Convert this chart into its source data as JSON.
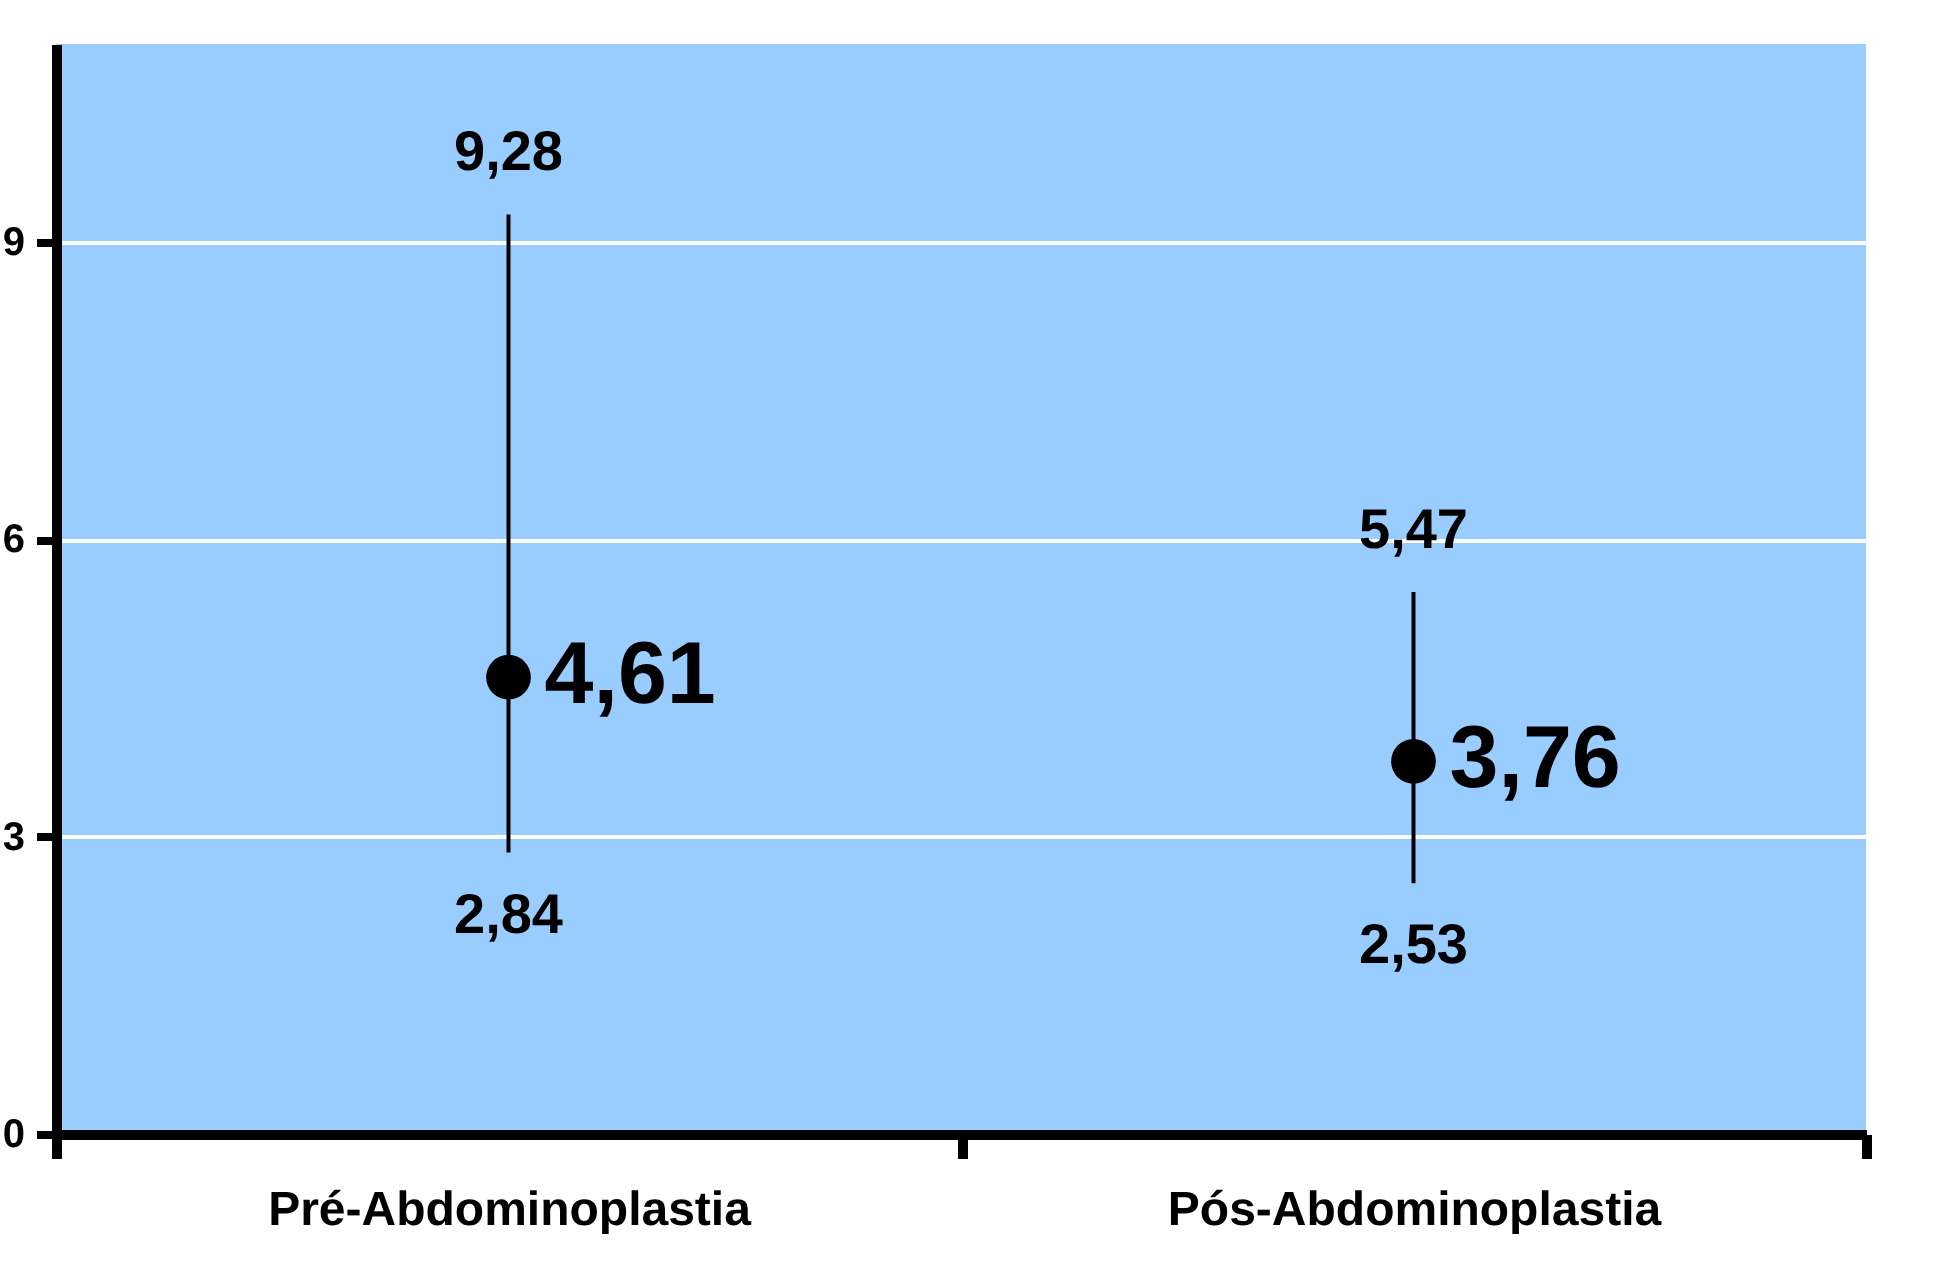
{
  "chart_data": {
    "type": "scatter",
    "categories": [
      "Pré-Abdominoplastia",
      "Pós-Abdominoplastia"
    ],
    "values": [
      4.61,
      3.76
    ],
    "errors": [
      [
        2.84,
        9.28
      ],
      [
        2.53,
        5.47
      ]
    ],
    "value_labels": [
      "4,61",
      "3,76"
    ],
    "color": "#000000",
    "marker": "circle",
    "ylim": [
      0,
      11
    ],
    "yticks": [
      0,
      3,
      6,
      9
    ],
    "grid": "y",
    "annotations": [
      {
        "text": "9,28",
        "x": "Pré-Abdominoplastia",
        "y": 9.28
      },
      {
        "text": "2,84",
        "x": "Pré-Abdominoplastia",
        "y": 2.84
      },
      {
        "text": "5,47",
        "x": "Pós-Abdominoplastia",
        "y": 5.47
      },
      {
        "text": "2,53",
        "x": "Pós-Abdominoplastia",
        "y": 2.53
      }
    ]
  }
}
